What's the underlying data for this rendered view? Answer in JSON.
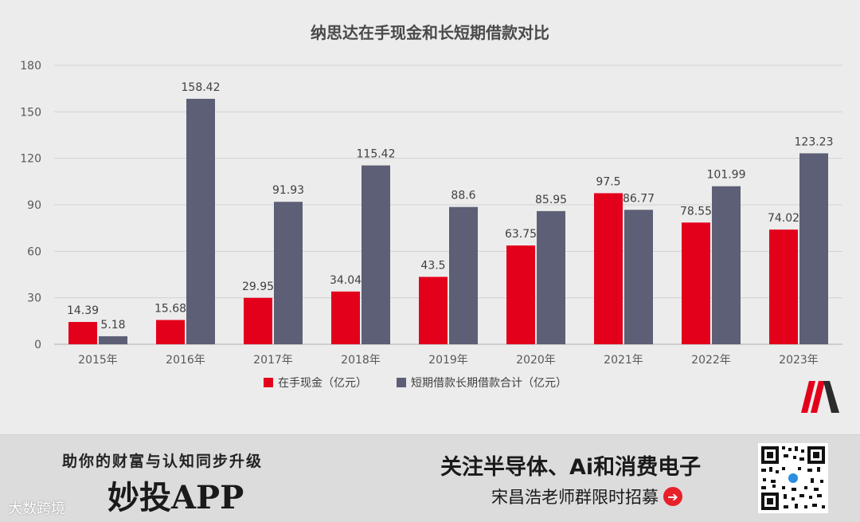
{
  "chart_data": {
    "type": "bar",
    "title": "纳思达在手现金和长短期借款对比",
    "categories": [
      "2015年",
      "2016年",
      "2017年",
      "2018年",
      "2019年",
      "2020年",
      "2021年",
      "2022年",
      "2023年"
    ],
    "series": [
      {
        "name": "在手现金（亿元）",
        "color": "#e3001b",
        "values": [
          14.39,
          15.68,
          29.95,
          34.04,
          43.5,
          63.75,
          97.5,
          78.55,
          74.02
        ],
        "labels": [
          "14.39",
          "15.68",
          "29.95",
          "34.04",
          "43.5",
          "63.75",
          "97.5",
          "78.55",
          "74.02"
        ]
      },
      {
        "name": "短期借款长期借款合计（亿元）",
        "color": "#5c5f75",
        "values": [
          5.18,
          158.42,
          91.93,
          115.42,
          88.6,
          85.95,
          86.77,
          101.99,
          123.23
        ],
        "labels": [
          "5.18",
          "158.42",
          "91.93",
          "115.42",
          "88.6",
          "85.95",
          "86.77",
          "101.99",
          "123.23"
        ]
      }
    ],
    "ylim": [
      0,
      180
    ],
    "yticks": [
      "0",
      "30",
      "60",
      "90",
      "120",
      "150",
      "180"
    ],
    "legend": "bottom",
    "grid": true
  },
  "banner": {
    "slogan": "助你的财富与认知同步升级",
    "app_name": "妙投APP",
    "watermark": "大数跨境",
    "headline": "关注半导体、Ai和消费电子",
    "subline": "宋昌浩老师群限时招募",
    "arrow_icon": "➔"
  }
}
